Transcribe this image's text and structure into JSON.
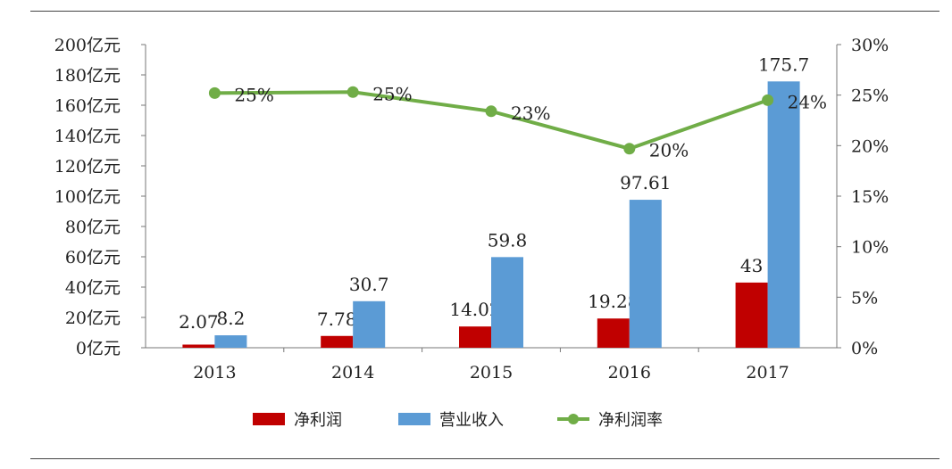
{
  "chart_data": {
    "type": "bar",
    "categories": [
      "2013",
      "2014",
      "2015",
      "2016",
      "2017"
    ],
    "series": [
      {
        "name": "净利润",
        "kind": "bar",
        "axis": "left",
        "color": "#c00000",
        "values": [
          2.07,
          7.78,
          14.02,
          19.28,
          43
        ],
        "labels": [
          "2.07",
          "7.78",
          "14.02",
          "19.28",
          "43"
        ]
      },
      {
        "name": "营业收入",
        "kind": "bar",
        "axis": "left",
        "color": "#5b9bd5",
        "values": [
          8.2,
          30.7,
          59.8,
          97.61,
          175.7
        ],
        "labels": [
          "8.2",
          "30.7",
          "59.8",
          "97.61",
          "175.7"
        ]
      },
      {
        "name": "净利润率",
        "kind": "line",
        "axis": "right",
        "color": "#70ad47",
        "values": [
          0.252,
          0.253,
          0.234,
          0.197,
          0.245
        ],
        "labels": [
          "25%",
          "25%",
          "23%",
          "20%",
          "24%"
        ]
      }
    ],
    "left_axis": {
      "ylim": [
        0,
        200
      ],
      "ticks": [
        {
          "value": 0,
          "label": "0亿元"
        },
        {
          "value": 20,
          "label": "20亿元"
        },
        {
          "value": 40,
          "label": "40亿元"
        },
        {
          "value": 60,
          "label": "60亿元"
        },
        {
          "value": 80,
          "label": "80亿元"
        },
        {
          "value": 100,
          "label": "100亿元"
        },
        {
          "value": 120,
          "label": "120亿元"
        },
        {
          "value": 140,
          "label": "140亿元"
        },
        {
          "value": 160,
          "label": "160亿元"
        },
        {
          "value": 180,
          "label": "180亿元"
        },
        {
          "value": 200,
          "label": "200亿元"
        }
      ]
    },
    "right_axis": {
      "ylim": [
        0,
        0.3
      ],
      "ticks": [
        {
          "value": 0,
          "label": "0%"
        },
        {
          "value": 0.05,
          "label": "5%"
        },
        {
          "value": 0.1,
          "label": "10%"
        },
        {
          "value": 0.15,
          "label": "15%"
        },
        {
          "value": 0.2,
          "label": "20%"
        },
        {
          "value": 0.25,
          "label": "25%"
        },
        {
          "value": 0.3,
          "label": "30%"
        }
      ]
    },
    "legend_placement": "bottom",
    "grid": false
  }
}
